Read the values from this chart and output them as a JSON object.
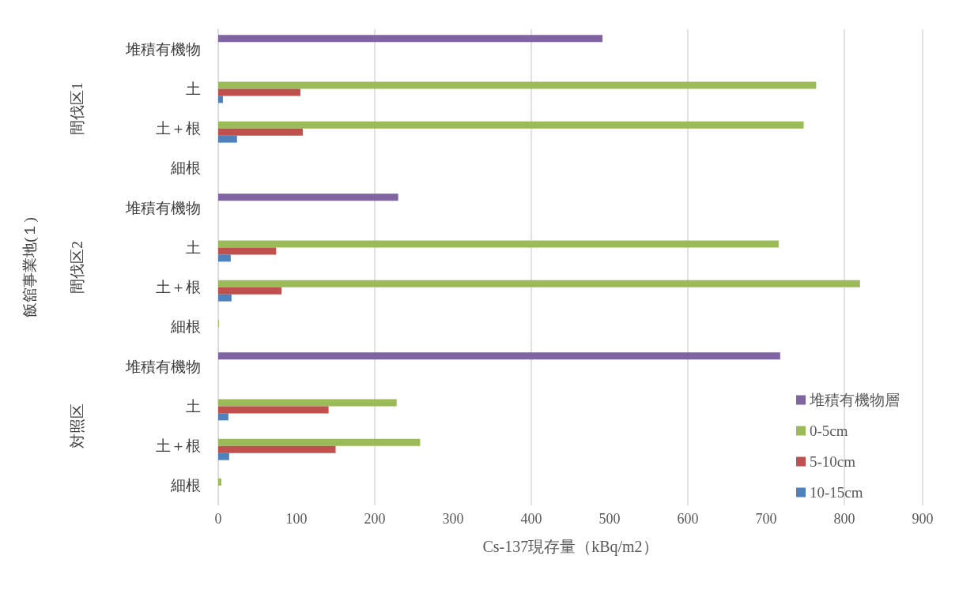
{
  "chart_data": {
    "type": "bar",
    "orientation": "horizontal",
    "xlabel": "Cs-137現存量（kBq/m2）",
    "annotations": [
      "間伐区1",
      "間伐区2",
      "対照区",
      "飯舘事業地(１)"
    ],
    "categories": [
      "堆積有機物",
      "土",
      "土＋根",
      "細根",
      "堆積有機物",
      "土",
      "土＋根",
      "細根",
      "堆積有機物",
      "土",
      "土＋根",
      "細根"
    ],
    "series": [
      {
        "name": "堆積有機物層",
        "color": "#8064a2",
        "values": [
          491,
          null,
          null,
          null,
          230,
          null,
          null,
          null,
          718,
          null,
          null,
          null
        ]
      },
      {
        "name": "0-5cm",
        "color": "#9bbb59",
        "values": [
          null,
          764,
          748,
          null,
          null,
          716,
          820,
          1,
          null,
          228,
          258,
          4
        ]
      },
      {
        "name": "5-10cm",
        "color": "#c0504d",
        "values": [
          null,
          105,
          108,
          null,
          null,
          74,
          81,
          null,
          null,
          141,
          150,
          null
        ]
      },
      {
        "name": "10-15cm",
        "color": "#4f81bd",
        "values": [
          null,
          6,
          24,
          null,
          null,
          16,
          17,
          null,
          null,
          13,
          14,
          null
        ]
      }
    ],
    "xlim": [
      0,
      900
    ],
    "xticks": [
      0,
      100,
      200,
      300,
      400,
      500,
      600,
      700,
      800,
      900
    ],
    "grid": "x",
    "legend": "bottom right"
  }
}
